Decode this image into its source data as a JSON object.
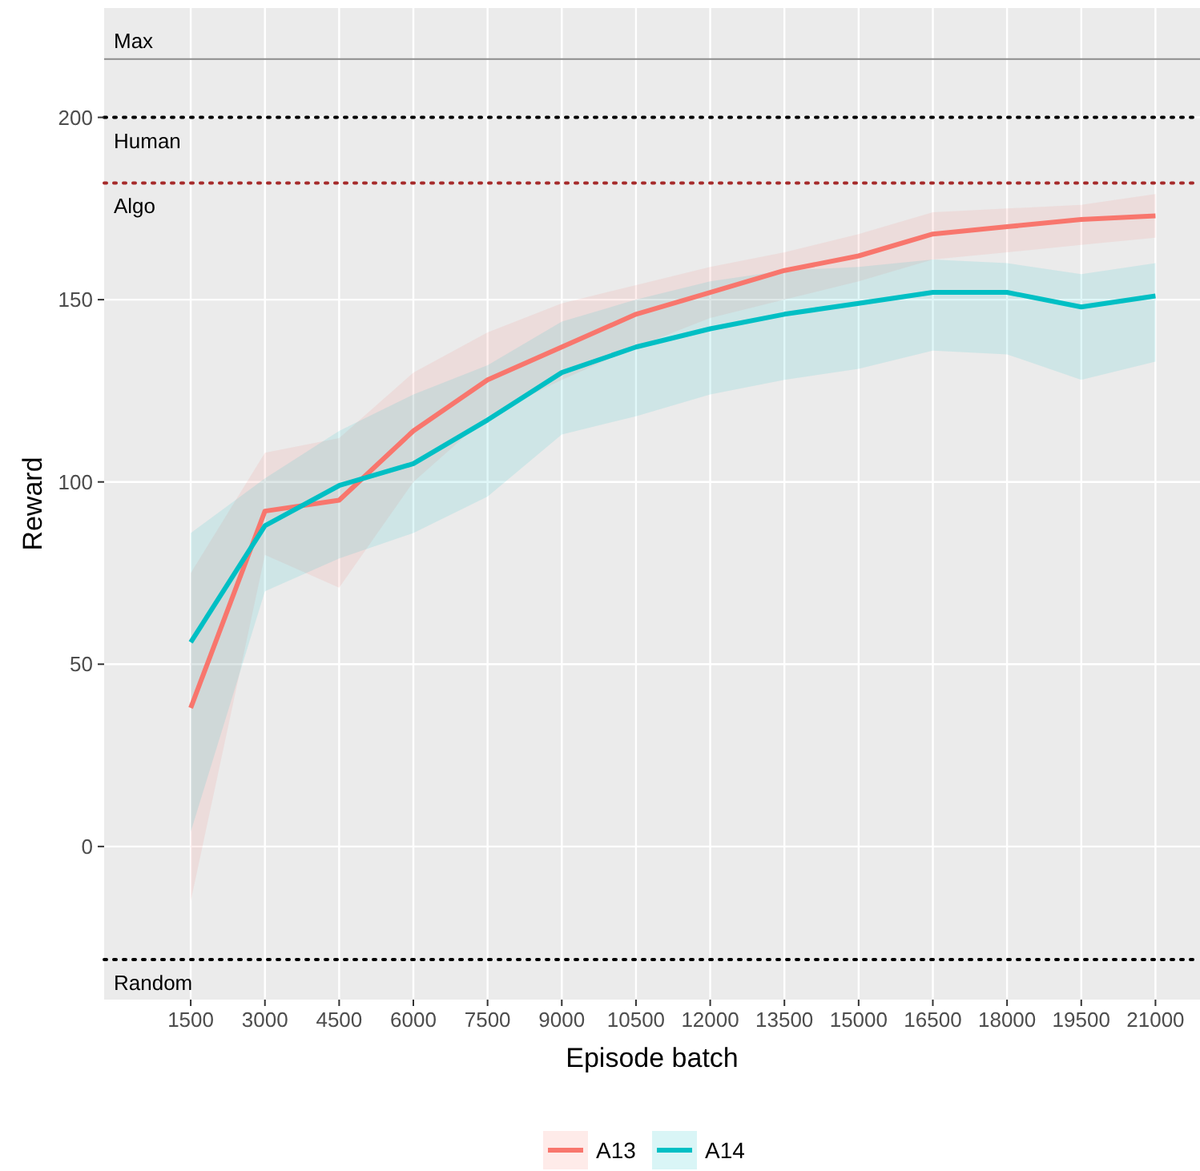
{
  "chart_data": {
    "type": "line",
    "xlabel": "Episode batch",
    "ylabel": "Reward",
    "x": [
      1500,
      3000,
      4500,
      6000,
      7500,
      9000,
      10500,
      12000,
      13500,
      15000,
      16500,
      18000,
      19500,
      21000
    ],
    "series": [
      {
        "name": "A13",
        "color": "#f8766d",
        "values": [
          38,
          92,
          95,
          114,
          128,
          137,
          146,
          152,
          158,
          162,
          168,
          170,
          172,
          173
        ],
        "lower": [
          -15,
          80,
          71,
          100,
          118,
          128,
          137,
          145,
          150,
          155,
          161,
          163,
          165,
          167
        ],
        "upper": [
          75,
          108,
          112,
          130,
          141,
          149,
          154,
          159,
          163,
          168,
          174,
          175,
          176,
          179
        ]
      },
      {
        "name": "A14",
        "color": "#00bfc4",
        "values": [
          56,
          88,
          99,
          105,
          117,
          130,
          137,
          142,
          146,
          149,
          152,
          152,
          148,
          151
        ],
        "lower": [
          4,
          70,
          79,
          86,
          96,
          113,
          118,
          124,
          128,
          131,
          136,
          135,
          128,
          133
        ],
        "upper": [
          86,
          101,
          114,
          124,
          132,
          144,
          150,
          155,
          158,
          159,
          161,
          160,
          157,
          160
        ]
      }
    ],
    "xlim": [
      -250,
      21900
    ],
    "ylim": [
      -42,
      230
    ],
    "xticks": [
      1500,
      3000,
      4500,
      6000,
      7500,
      9000,
      10500,
      12000,
      13500,
      15000,
      16500,
      18000,
      19500,
      21000
    ],
    "yticks": [
      0,
      50,
      100,
      150,
      200
    ],
    "ref_lines": [
      {
        "axis": "y",
        "value": 216,
        "label": "Max",
        "color": "#8c8c8c",
        "line_style": "solid"
      },
      {
        "axis": "y",
        "value": 200,
        "label": "Human",
        "color": "#000000",
        "line_style": "dotted"
      },
      {
        "axis": "y",
        "value": 182,
        "label": "Algo",
        "color": "#a52a2a",
        "line_style": "dotted"
      },
      {
        "axis": "y",
        "value": -31,
        "label": "Random",
        "color": "#000000",
        "line_style": "dotted"
      }
    ],
    "grid": true,
    "legend": "bottom",
    "line_style": "solid",
    "marker": "none"
  }
}
